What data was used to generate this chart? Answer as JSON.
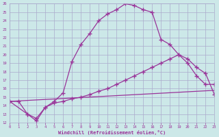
{
  "xlabel": "Windchill (Refroidissement éolien,°C)",
  "background_color": "#cce8e8",
  "grid_color": "#aaaacc",
  "line_color": "#993399",
  "xmin": 0,
  "xmax": 23,
  "ymin": 12,
  "ymax": 26,
  "line1_x": [
    0,
    1,
    2,
    3,
    4,
    5,
    6,
    7,
    8,
    9,
    10,
    11,
    12,
    13,
    14,
    15,
    16,
    17,
    18,
    19,
    20,
    21,
    22,
    23
  ],
  "line1_y": [
    14.5,
    14.5,
    13.0,
    12.5,
    13.8,
    14.5,
    15.5,
    19.2,
    21.2,
    22.5,
    24.0,
    24.8,
    25.3,
    26.0,
    25.8,
    25.3,
    25.0,
    21.8,
    21.2,
    20.0,
    19.0,
    17.5,
    16.5,
    16.5
  ],
  "line2_x": [
    0,
    2,
    3,
    4,
    5,
    6,
    7,
    8,
    9,
    10,
    11,
    12,
    13,
    14,
    15,
    16,
    17,
    18,
    19,
    20,
    21,
    22,
    23
  ],
  "line2_y": [
    14.5,
    13.0,
    12.2,
    13.8,
    14.3,
    14.5,
    14.8,
    15.0,
    15.3,
    15.7,
    16.0,
    16.5,
    17.0,
    17.5,
    18.0,
    18.5,
    19.0,
    19.5,
    20.0,
    19.5,
    18.5,
    17.8,
    15.3
  ],
  "line3_x": [
    0,
    23
  ],
  "line3_y": [
    14.5,
    15.8
  ]
}
